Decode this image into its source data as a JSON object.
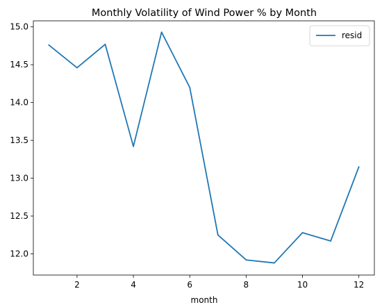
{
  "chart_data": {
    "type": "line",
    "title": "Monthly Volatility of Wind Power % by Month",
    "xlabel": "month",
    "ylabel": "",
    "xlim": [
      0.45,
      12.55
    ],
    "ylim": [
      11.72,
      15.08
    ],
    "xticks": [
      2,
      4,
      6,
      8,
      10,
      12
    ],
    "xtick_labels": [
      "2",
      "4",
      "6",
      "8",
      "10",
      "12"
    ],
    "yticks": [
      12.0,
      12.5,
      13.0,
      13.5,
      14.0,
      14.5,
      15.0
    ],
    "ytick_labels": [
      "12.0",
      "12.5",
      "13.0",
      "13.5",
      "14.0",
      "14.5",
      "15.0"
    ],
    "grid": false,
    "legend_position": "top-right",
    "series": [
      {
        "name": "resid",
        "color": "#1f77b4",
        "x": [
          1,
          2,
          3,
          4,
          5,
          6,
          7,
          8,
          9,
          10,
          11,
          12
        ],
        "y": [
          14.76,
          14.46,
          14.77,
          13.42,
          14.93,
          14.2,
          12.25,
          11.92,
          11.88,
          12.28,
          12.17,
          13.15
        ]
      }
    ]
  }
}
